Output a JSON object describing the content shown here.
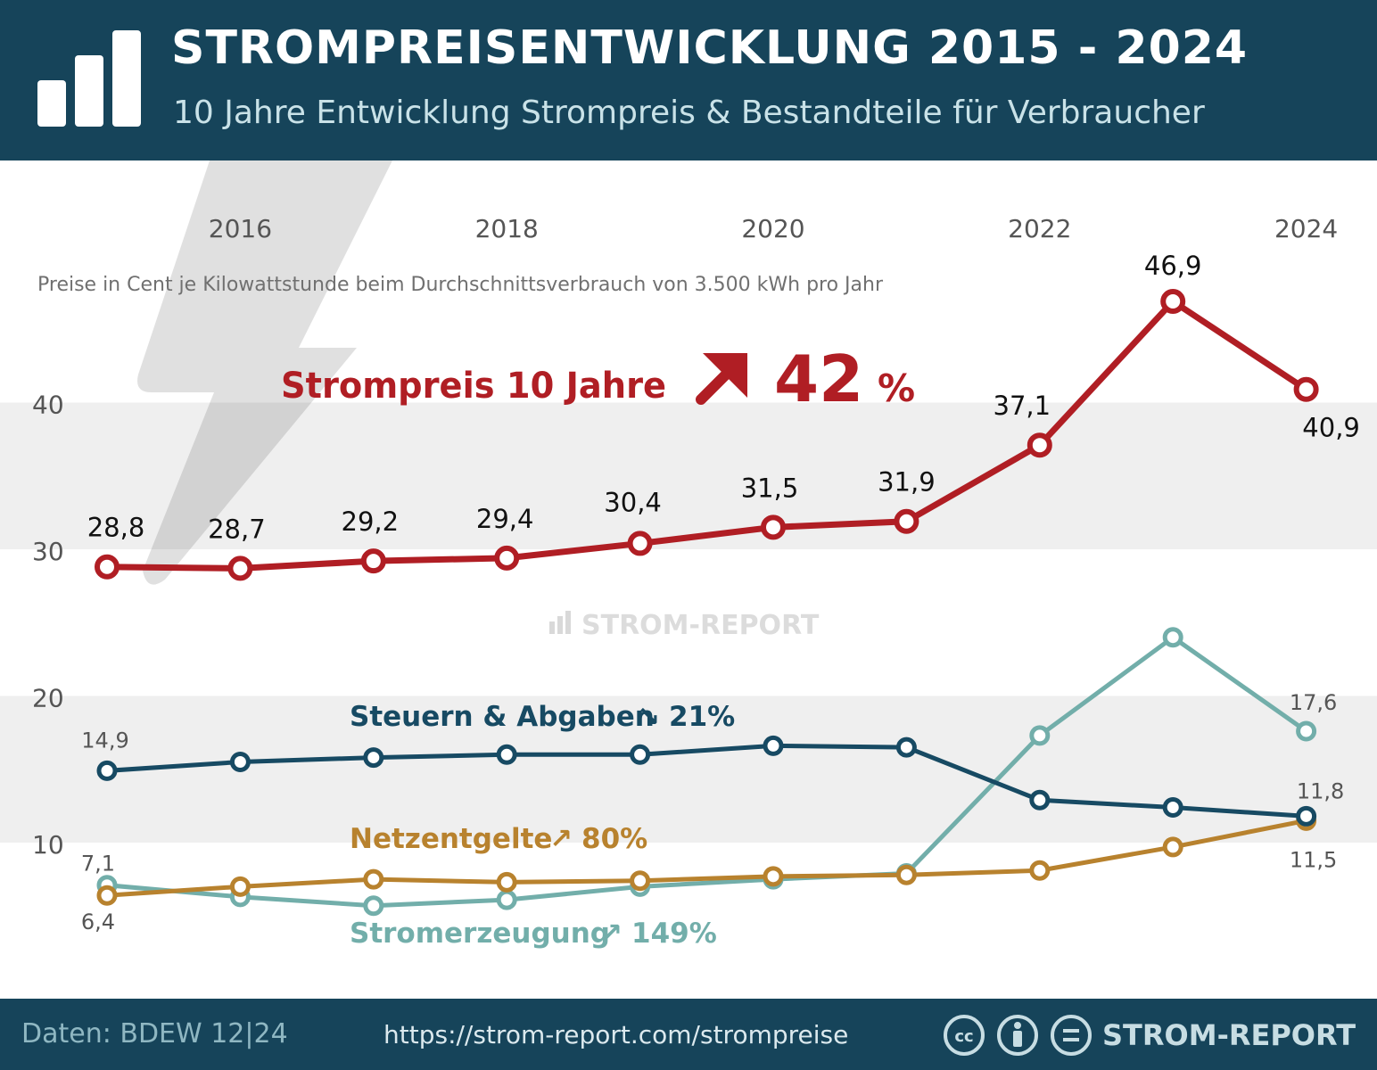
{
  "header": {
    "title": "STROMPREISENTWICKLUNG 2015 - 2024",
    "subtitle": "10 Jahre Entwicklung Strompreis & Bestandteile für Verbraucher",
    "icon": "bar-chart-icon"
  },
  "chart_note": "Preise in Cent je Kilowattstunde beim Durchschnittsverbrauch von 3.500 kWh pro Jahr",
  "headline": {
    "label": "Strompreis 10 Jahre",
    "arrow": "↗",
    "value": "42",
    "unit": "%"
  },
  "watermark": "STROM-REPORT",
  "colors": {
    "header_bg": "#16445a",
    "strompreis": "#b01e24",
    "steuern": "#174a63",
    "netzentgelte": "#b8822e",
    "stromerzeugung": "#72aeaa",
    "band": "#efefef"
  },
  "chart_data": {
    "type": "line",
    "x": [
      2015,
      2016,
      2017,
      2018,
      2019,
      2020,
      2021,
      2022,
      2023,
      2024
    ],
    "x_tick_labels": [
      "2016",
      "2018",
      "2020",
      "2022",
      "2024"
    ],
    "x_ticks": [
      2016,
      2018,
      2020,
      2022,
      2024
    ],
    "y_ticks": [
      10,
      20,
      30,
      40
    ],
    "y_tick_labels": [
      "10",
      "20",
      "30",
      "40"
    ],
    "ylim": [
      3,
      55
    ],
    "grid": "alternating horizontal bands",
    "series": [
      {
        "id": "strompreis",
        "name": "Strompreis 10 Jahre",
        "values": [
          28.8,
          28.7,
          29.2,
          29.4,
          30.4,
          31.5,
          31.9,
          37.1,
          46.9,
          40.9
        ],
        "labels": [
          "28,8",
          "28,7",
          "29,2",
          "29,4",
          "30,4",
          "31,5",
          "31,9",
          "37,1",
          "46,9",
          "40,9"
        ]
      },
      {
        "id": "steuern",
        "name": "Steuern & Abgaben",
        "change": "21%",
        "arrow": "↘",
        "values": [
          14.9,
          15.5,
          15.8,
          16.0,
          16.0,
          16.6,
          16.5,
          12.9,
          12.4,
          11.8
        ],
        "labels": [
          "14,9",
          "",
          "",
          "",
          "",
          "",
          "",
          "",
          "",
          "11,8"
        ]
      },
      {
        "id": "netzentgelte",
        "name": "Netzentgelte",
        "change": "80%",
        "arrow": "↗",
        "values": [
          6.4,
          7.0,
          7.5,
          7.3,
          7.4,
          7.7,
          7.8,
          8.1,
          9.7,
          11.5
        ],
        "labels": [
          "6,4",
          "",
          "",
          "",
          "",
          "",
          "",
          "",
          "",
          "11,5"
        ]
      },
      {
        "id": "stromerzeugung",
        "name": "Stromerzeugung",
        "change": "149%",
        "arrow": "↗",
        "values": [
          7.1,
          6.3,
          5.7,
          6.1,
          7.0,
          7.5,
          7.9,
          17.3,
          24.0,
          17.6
        ],
        "labels": [
          "7,1",
          "",
          "",
          "",
          "",
          "",
          "",
          "",
          "",
          "17,6"
        ]
      }
    ]
  },
  "footer": {
    "source": "Daten: BDEW 12|24",
    "url": "https://strom-report.com/strompreise",
    "license_icons": [
      "cc-icon",
      "by-icon",
      "nd-icon"
    ],
    "brand": "STROM-REPORT"
  }
}
